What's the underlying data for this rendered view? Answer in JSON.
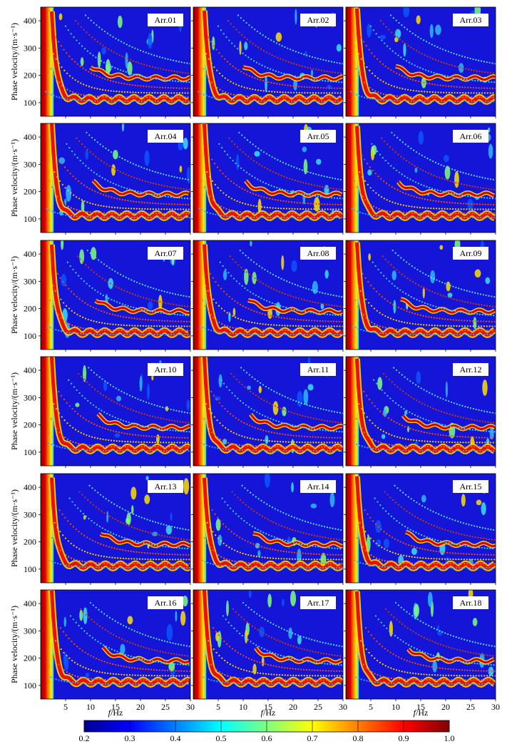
{
  "chart_data": {
    "type": "heatmap",
    "title": "",
    "panel_grid": {
      "rows": 6,
      "cols": 3
    },
    "xlabel_italic": "f",
    "xlabel_unit": "/Hz",
    "ylabel": "Phase velocity/(m·s⁻¹)",
    "xlim": [
      0,
      30
    ],
    "ylim": [
      50,
      450
    ],
    "xticks": [
      5,
      10,
      15,
      20,
      25,
      30
    ],
    "yticks": [
      100,
      200,
      300,
      400
    ],
    "panels": [
      "Arr.01",
      "Arr.02",
      "Arr.03",
      "Arr.04",
      "Arr.05",
      "Arr.06",
      "Arr.07",
      "Arr.08",
      "Arr.09",
      "Arr.10",
      "Arr.11",
      "Arr.12",
      "Arr.13",
      "Arr.14",
      "Arr.15",
      "Arr.16",
      "Arr.17",
      "Arr.18"
    ],
    "colorbar": {
      "min": 0.2,
      "max": 1.0,
      "ticks": [
        "0.2",
        "0.3",
        "0.4",
        "0.5",
        "0.6",
        "0.7",
        "0.8",
        "0.9",
        "1.0"
      ],
      "colormap": "jet"
    },
    "mode_curves": [
      {
        "start_f": 1.5,
        "start_v": 250,
        "end_v": 120,
        "decay": 2.5,
        "color": "#ff6a10"
      },
      {
        "start_f": 2,
        "start_v": 300,
        "end_v": 135,
        "decay": 4,
        "color": "#ffd000"
      },
      {
        "start_f": 3,
        "start_v": 340,
        "end_v": 150,
        "decay": 6,
        "color": "#ff4a00"
      },
      {
        "start_f": 5,
        "start_v": 380,
        "end_v": 165,
        "decay": 8,
        "color": "#44d0ff"
      },
      {
        "start_f": 7,
        "start_v": 400,
        "end_v": 185,
        "decay": 10,
        "color": "#d23a00"
      },
      {
        "start_f": 9,
        "start_v": 420,
        "end_v": 205,
        "decay": 12,
        "color": "#58e0e0"
      },
      {
        "start_f": 1,
        "start_v": 140,
        "end_v": 105,
        "decay": 3,
        "color": "#30a8ff"
      }
    ]
  }
}
